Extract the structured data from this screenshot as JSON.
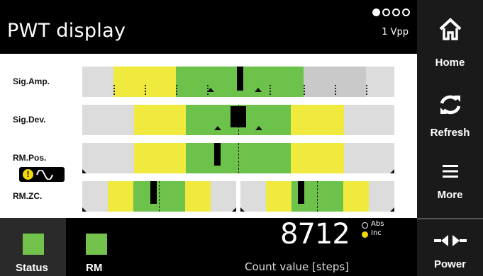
{
  "header": {
    "title": "PWT display",
    "signal_unit": "1 Vpp",
    "page_dots": 4,
    "active_page": 1
  },
  "rows": [
    {
      "label": "Sig.Amp."
    },
    {
      "label": "Sig.Dev."
    },
    {
      "label": "RM.Pos."
    },
    {
      "label": "RM.ZC."
    }
  ],
  "colors": {
    "green": "#6cc24a",
    "yellow": "#f1ea3e",
    "gray": "#dcdcdc",
    "warning": "#f1d90a"
  },
  "sidebar": {
    "home": {
      "label": "Home",
      "icon": "home-icon"
    },
    "refresh": {
      "label": "Refresh",
      "icon": "refresh-icon"
    },
    "more": {
      "label": "More",
      "icon": "menu-icon"
    },
    "power": {
      "label": "Power",
      "icon": "power-plug-icon"
    }
  },
  "footer": {
    "status_label": "Status",
    "rm_label": "RM",
    "count_value": "8712",
    "count_label": "Count value [steps]",
    "mode_abs": "Abs",
    "mode_inc": "Inc",
    "active_mode": "Inc"
  }
}
